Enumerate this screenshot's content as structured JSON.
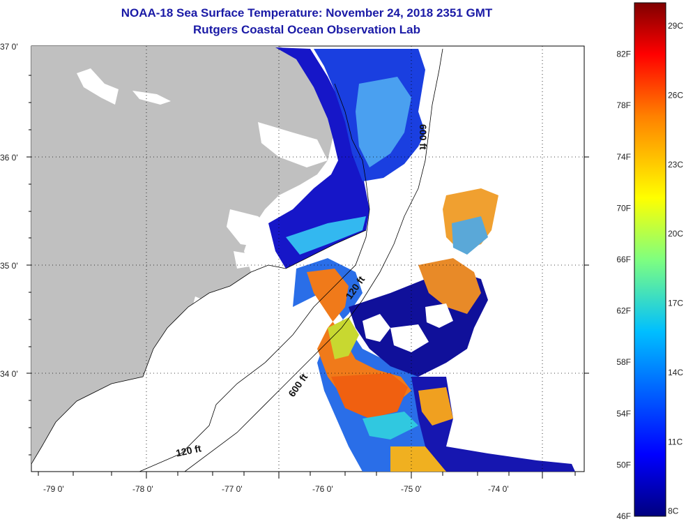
{
  "title": "NOAA-18 Sea Surface Temperature:  November 24, 2018 2351 GMT",
  "subtitle": "Rutgers Coastal Ocean Observation Lab",
  "lat_labels": [
    "37 0'",
    "36 0'",
    "35 0'",
    "34 0'"
  ],
  "lon_labels": [
    "-79 0'",
    "-78 0'",
    "-77 0'",
    "-76 0'",
    "-75 0'",
    "-74 0'"
  ],
  "contours": [
    "120 ft",
    "600 ft",
    "600 ft",
    "120 ft"
  ],
  "colorbar": {
    "fahrenheit": [
      "82F",
      "78F",
      "74F",
      "70F",
      "66F",
      "62F",
      "58F",
      "54F",
      "50F",
      "46F"
    ],
    "celsius": [
      "29C",
      "26C",
      "23C",
      "20C",
      "17C",
      "14C",
      "11C",
      "8C"
    ],
    "range_f": [
      46,
      86
    ]
  },
  "colors": {
    "title": "#1a1aa6",
    "land": "#c0c0c0",
    "cold": "#1010b0",
    "warm": "#f07020"
  }
}
